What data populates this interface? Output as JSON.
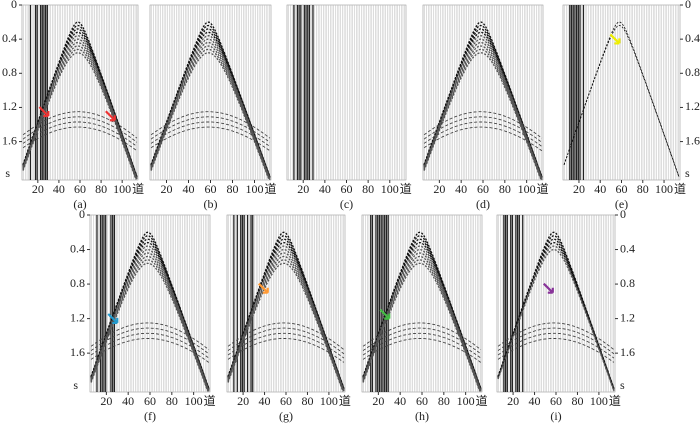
{
  "panels": [
    {
      "label": "(a)"
    },
    {
      "label": "(b)"
    },
    {
      "label": "(c)"
    },
    {
      "label": "(d)"
    },
    {
      "label": "(e)"
    },
    {
      "label": "(f)"
    },
    {
      "label": "(g)"
    },
    {
      "label": "(h)"
    },
    {
      "label": "(i)"
    }
  ],
  "axes": {
    "xlim": [
      5,
      115
    ],
    "ylim": [
      0,
      2.05
    ],
    "xticks": [
      20,
      40,
      60,
      80,
      100
    ],
    "yticks": [
      0,
      0.4,
      0.8,
      1.2,
      1.6
    ],
    "x_unit": "道",
    "y_unit": "s"
  }
}
